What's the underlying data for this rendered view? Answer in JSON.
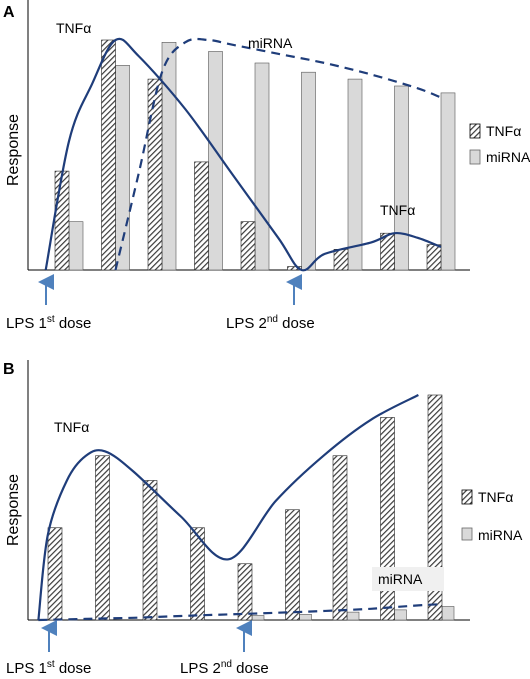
{
  "colors": {
    "tnf_bar_hatch": "#3a3a3a",
    "mirna_bar_fill": "#d9d9d9",
    "curve": "#1f3d7a",
    "arrow": "#4f81bd"
  },
  "chart_data": [
    {
      "panel": "A",
      "type": "bar",
      "ylabel": "Response",
      "ylim": [
        0,
        100
      ],
      "legend_position": "right",
      "series": [
        {
          "name": "TNFα",
          "pattern": "hatched",
          "values": [
            43,
            100,
            83,
            47,
            21,
            1.5,
            9,
            16,
            11
          ]
        },
        {
          "name": "miRNA",
          "pattern": "light-gray",
          "values": [
            21,
            89,
            99,
            95,
            90,
            86,
            83,
            80,
            77
          ]
        }
      ],
      "curves": [
        {
          "label": "TNFα",
          "style": "solid",
          "points": [
            [
              0,
              0
            ],
            [
              0.5,
              56
            ],
            [
              1,
              81
            ],
            [
              1.5,
              100
            ],
            [
              2,
              93
            ],
            [
              3,
              70
            ],
            [
              4,
              42
            ],
            [
              5,
              14
            ],
            [
              5.5,
              0
            ],
            [
              6,
              7
            ],
            [
              7,
              12
            ],
            [
              7.5,
              16
            ],
            [
              8,
              14
            ],
            [
              8.5,
              10
            ]
          ]
        },
        {
          "label": "miRNA",
          "style": "dashed",
          "points": [
            [
              1.5,
              0
            ],
            [
              2,
              42
            ],
            [
              2.5,
              86
            ],
            [
              3,
              99
            ],
            [
              3.5,
              100
            ],
            [
              4,
              98
            ],
            [
              5,
              94
            ],
            [
              6,
              90
            ],
            [
              7,
              85
            ],
            [
              8,
              79
            ],
            [
              8.5,
              75
            ]
          ]
        }
      ],
      "annotations": [
        {
          "text_main": "LPS 1",
          "text_sup": "st",
          "text_end": " dose",
          "at_x": 0
        },
        {
          "text_main": "LPS 2",
          "text_sup": "nd",
          "text_end": " dose",
          "at_x": 5.5
        }
      ]
    },
    {
      "panel": "B",
      "type": "bar",
      "ylabel": "Response",
      "ylim": [
        0,
        100
      ],
      "legend_position": "right",
      "series": [
        {
          "name": "TNFα",
          "pattern": "hatched",
          "values": [
            41,
            73,
            62,
            41,
            25,
            49,
            73,
            90,
            100
          ]
        },
        {
          "name": "miRNA",
          "pattern": "light-gray",
          "values": [
            0,
            0,
            0,
            0,
            2,
            2.5,
            3.5,
            4.5,
            6
          ]
        }
      ],
      "curves": [
        {
          "label": "TNFα",
          "style": "solid",
          "points": [
            [
              0,
              0
            ],
            [
              0.2,
              38
            ],
            [
              0.6,
              62
            ],
            [
              1,
              73
            ],
            [
              1.4,
              75
            ],
            [
              2,
              66
            ],
            [
              3,
              46
            ],
            [
              4,
              27
            ],
            [
              5,
              53
            ],
            [
              6,
              73
            ],
            [
              7,
              89
            ],
            [
              8,
              100
            ]
          ]
        },
        {
          "label": "miRNA",
          "style": "dashed",
          "points": [
            [
              0,
              0
            ],
            [
              1,
              0.5
            ],
            [
              2,
              1
            ],
            [
              3,
              1.8
            ],
            [
              4,
              2.5
            ],
            [
              5,
              3.2
            ],
            [
              6,
              4
            ],
            [
              7,
              5
            ],
            [
              8,
              6.5
            ],
            [
              8.5,
              7
            ]
          ]
        }
      ],
      "annotations": [
        {
          "text_main": "LPS 1",
          "text_sup": "st",
          "text_end": " dose",
          "at_x": 0
        },
        {
          "text_main": "LPS 2",
          "text_sup": "nd",
          "text_end": " dose",
          "at_x": 4.2
        }
      ]
    }
  ]
}
